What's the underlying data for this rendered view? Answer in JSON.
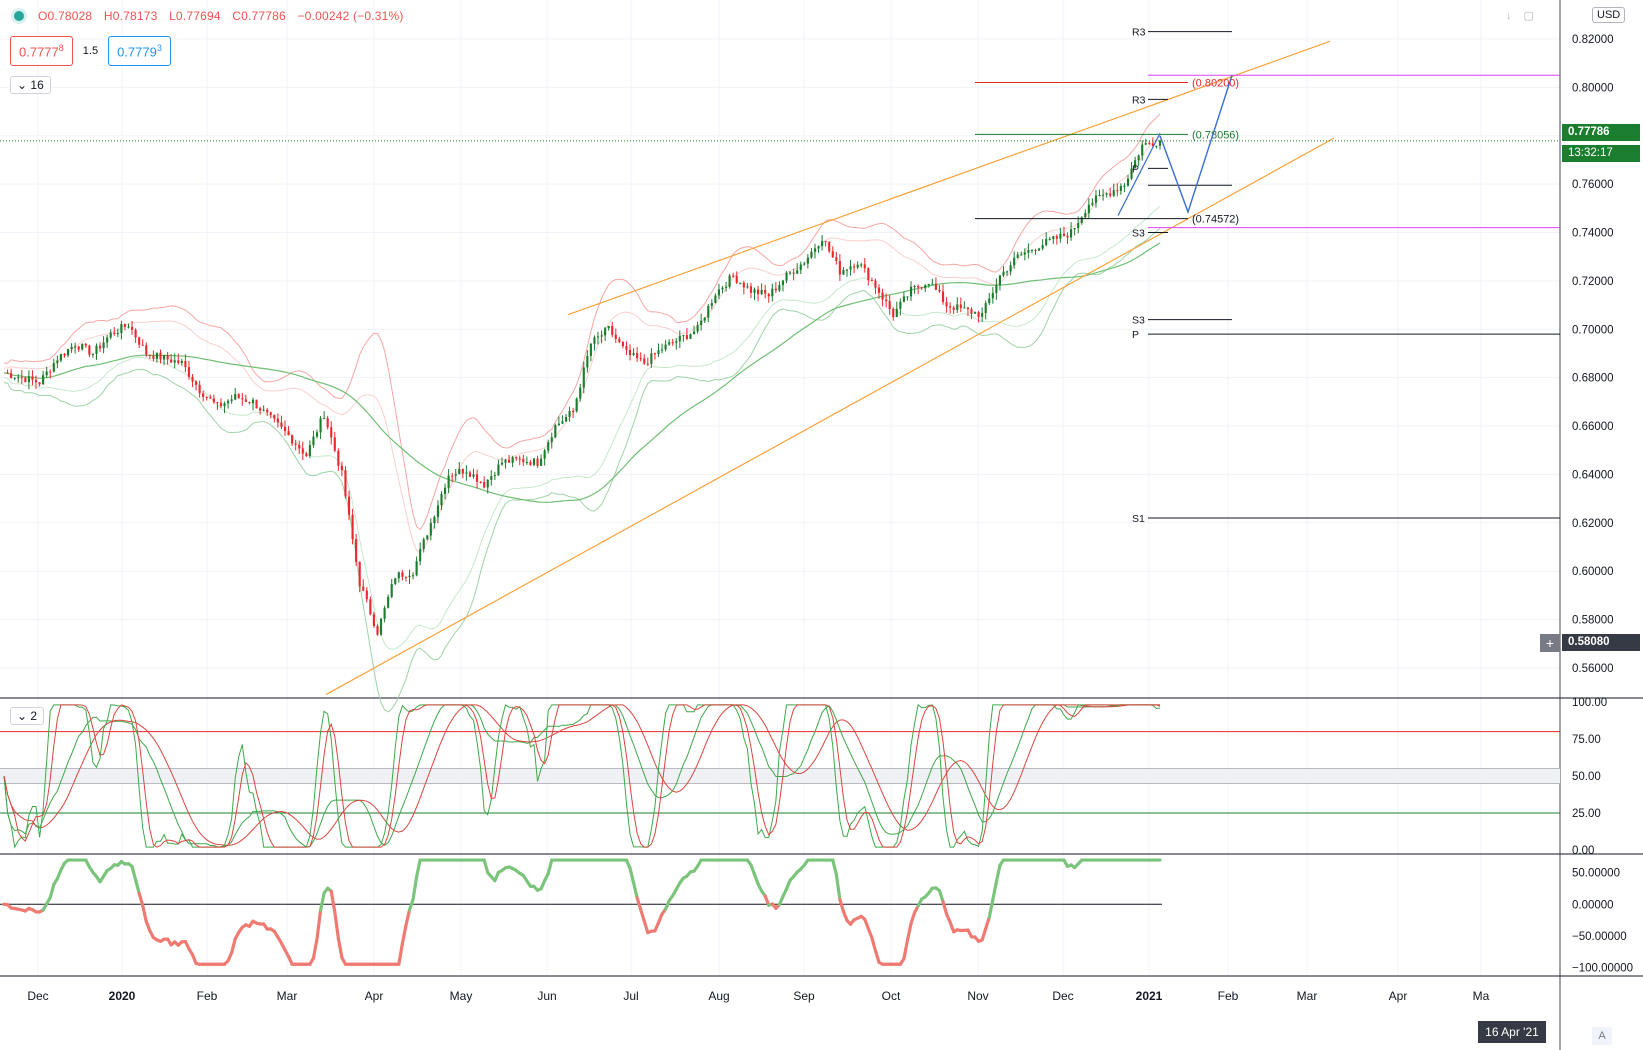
{
  "header": {
    "ohlc": {
      "open": "O0.78028",
      "high": "H0.78173",
      "low": "L0.77694",
      "close": "C0.77786",
      "change": "−0.00242 (−0.31%)"
    },
    "sell_price_main": "0.7777",
    "sell_price_sup": "8",
    "spread": "1.5",
    "buy_price_main": "0.7779",
    "buy_price_sup": "3",
    "currency": "USD",
    "icons": [
      "arrow-down-icon",
      "maximize-icon"
    ]
  },
  "panes": {
    "main_collapse": "16",
    "stoch_collapse": "2"
  },
  "colors": {
    "up": "#1b7d2e",
    "down": "#e8292e",
    "channel": "#f7a23a",
    "pivot": "#131722",
    "magenta": "#e040fb",
    "macd_up": "#7bc47b",
    "macd_down": "#ef7a72",
    "bb_red": "#f4a7a4",
    "bb_green": "#9fd3a7",
    "ma_green": "#6fbf73"
  },
  "badges": {
    "last_price": "0.77786",
    "countdown": "13:32:17",
    "crosshair_price": "0.58080",
    "crosshair_date": "16 Apr '21"
  },
  "crosshair_button": "+",
  "auto_button": "A",
  "chart_data": [
    {
      "type": "candlestick",
      "title": "",
      "y_axis": {
        "ticks": [
          "0.56000",
          "0.58000",
          "0.60000",
          "0.62000",
          "0.64000",
          "0.66000",
          "0.68000",
          "0.70000",
          "0.72000",
          "0.74000",
          "0.76000",
          "0.78000",
          "0.80000",
          "0.82000"
        ],
        "range": [
          0.548,
          0.827
        ]
      },
      "x_axis": {
        "labels": [
          "Dec",
          "2020",
          "Feb",
          "Mar",
          "Apr",
          "May",
          "Jun",
          "Jul",
          "Aug",
          "Sep",
          "Oct",
          "Nov",
          "Dec",
          "2021",
          "Feb",
          "Mar",
          "Apr",
          "Ma"
        ]
      },
      "close_path_weekly": [
        0.682,
        0.68,
        0.678,
        0.688,
        0.694,
        0.69,
        0.698,
        0.702,
        0.69,
        0.688,
        0.686,
        0.675,
        0.668,
        0.672,
        0.67,
        0.663,
        0.656,
        0.648,
        0.665,
        0.64,
        0.595,
        0.575,
        0.598,
        0.6,
        0.62,
        0.64,
        0.642,
        0.636,
        0.645,
        0.646,
        0.645,
        0.66,
        0.666,
        0.694,
        0.7,
        0.69,
        0.686,
        0.692,
        0.696,
        0.7,
        0.715,
        0.722,
        0.716,
        0.714,
        0.722,
        0.728,
        0.738,
        0.724,
        0.728,
        0.718,
        0.706,
        0.716,
        0.72,
        0.71,
        0.708,
        0.706,
        0.722,
        0.73,
        0.734,
        0.737,
        0.74,
        0.752,
        0.756,
        0.76,
        0.776,
        0.778
      ],
      "pivots": [
        {
          "label": "R3",
          "value": 0.823
        },
        {
          "label": "R3",
          "value": 0.795
        },
        {
          "label": "P",
          "value": 0.7665
        },
        {
          "label": "S3",
          "value": 0.74
        },
        {
          "label": "S3",
          "value": 0.704
        },
        {
          "label": "P",
          "value": 0.698
        },
        {
          "label": "S1",
          "value": 0.622
        }
      ],
      "levels": [
        {
          "label": "(0.80200)",
          "value": 0.802,
          "color": "#e8292e"
        },
        {
          "label": "(0.78056)",
          "value": 0.78056,
          "color": "#1b7d2e"
        },
        {
          "label": "(0.74572)",
          "value": 0.74572,
          "color": "#131722"
        },
        {
          "label": "",
          "value": 0.805,
          "color": "#e040fb"
        },
        {
          "label": "",
          "value": 0.742,
          "color": "#e040fb"
        }
      ],
      "channel": {
        "upper": [
          [
            0.706,
            0.819
          ]
        ],
        "lower": [
          [
            0.549,
            0.779
          ]
        ]
      },
      "projection": [
        0.78,
        0.7485,
        0.805
      ]
    },
    {
      "type": "line",
      "title": "",
      "y_axis": {
        "ticks": [
          "0.00",
          "25.00",
          "50.00",
          "75.00",
          "100.00"
        ],
        "range": [
          -2,
          102
        ]
      },
      "reference_lines": [
        80,
        55,
        45,
        25
      ]
    },
    {
      "type": "area",
      "title": "",
      "y_axis": {
        "ticks": [
          "−100.00000",
          "−50.00000",
          "0.00000",
          "50.00000"
        ],
        "range": [
          -112,
          78
        ]
      }
    }
  ]
}
